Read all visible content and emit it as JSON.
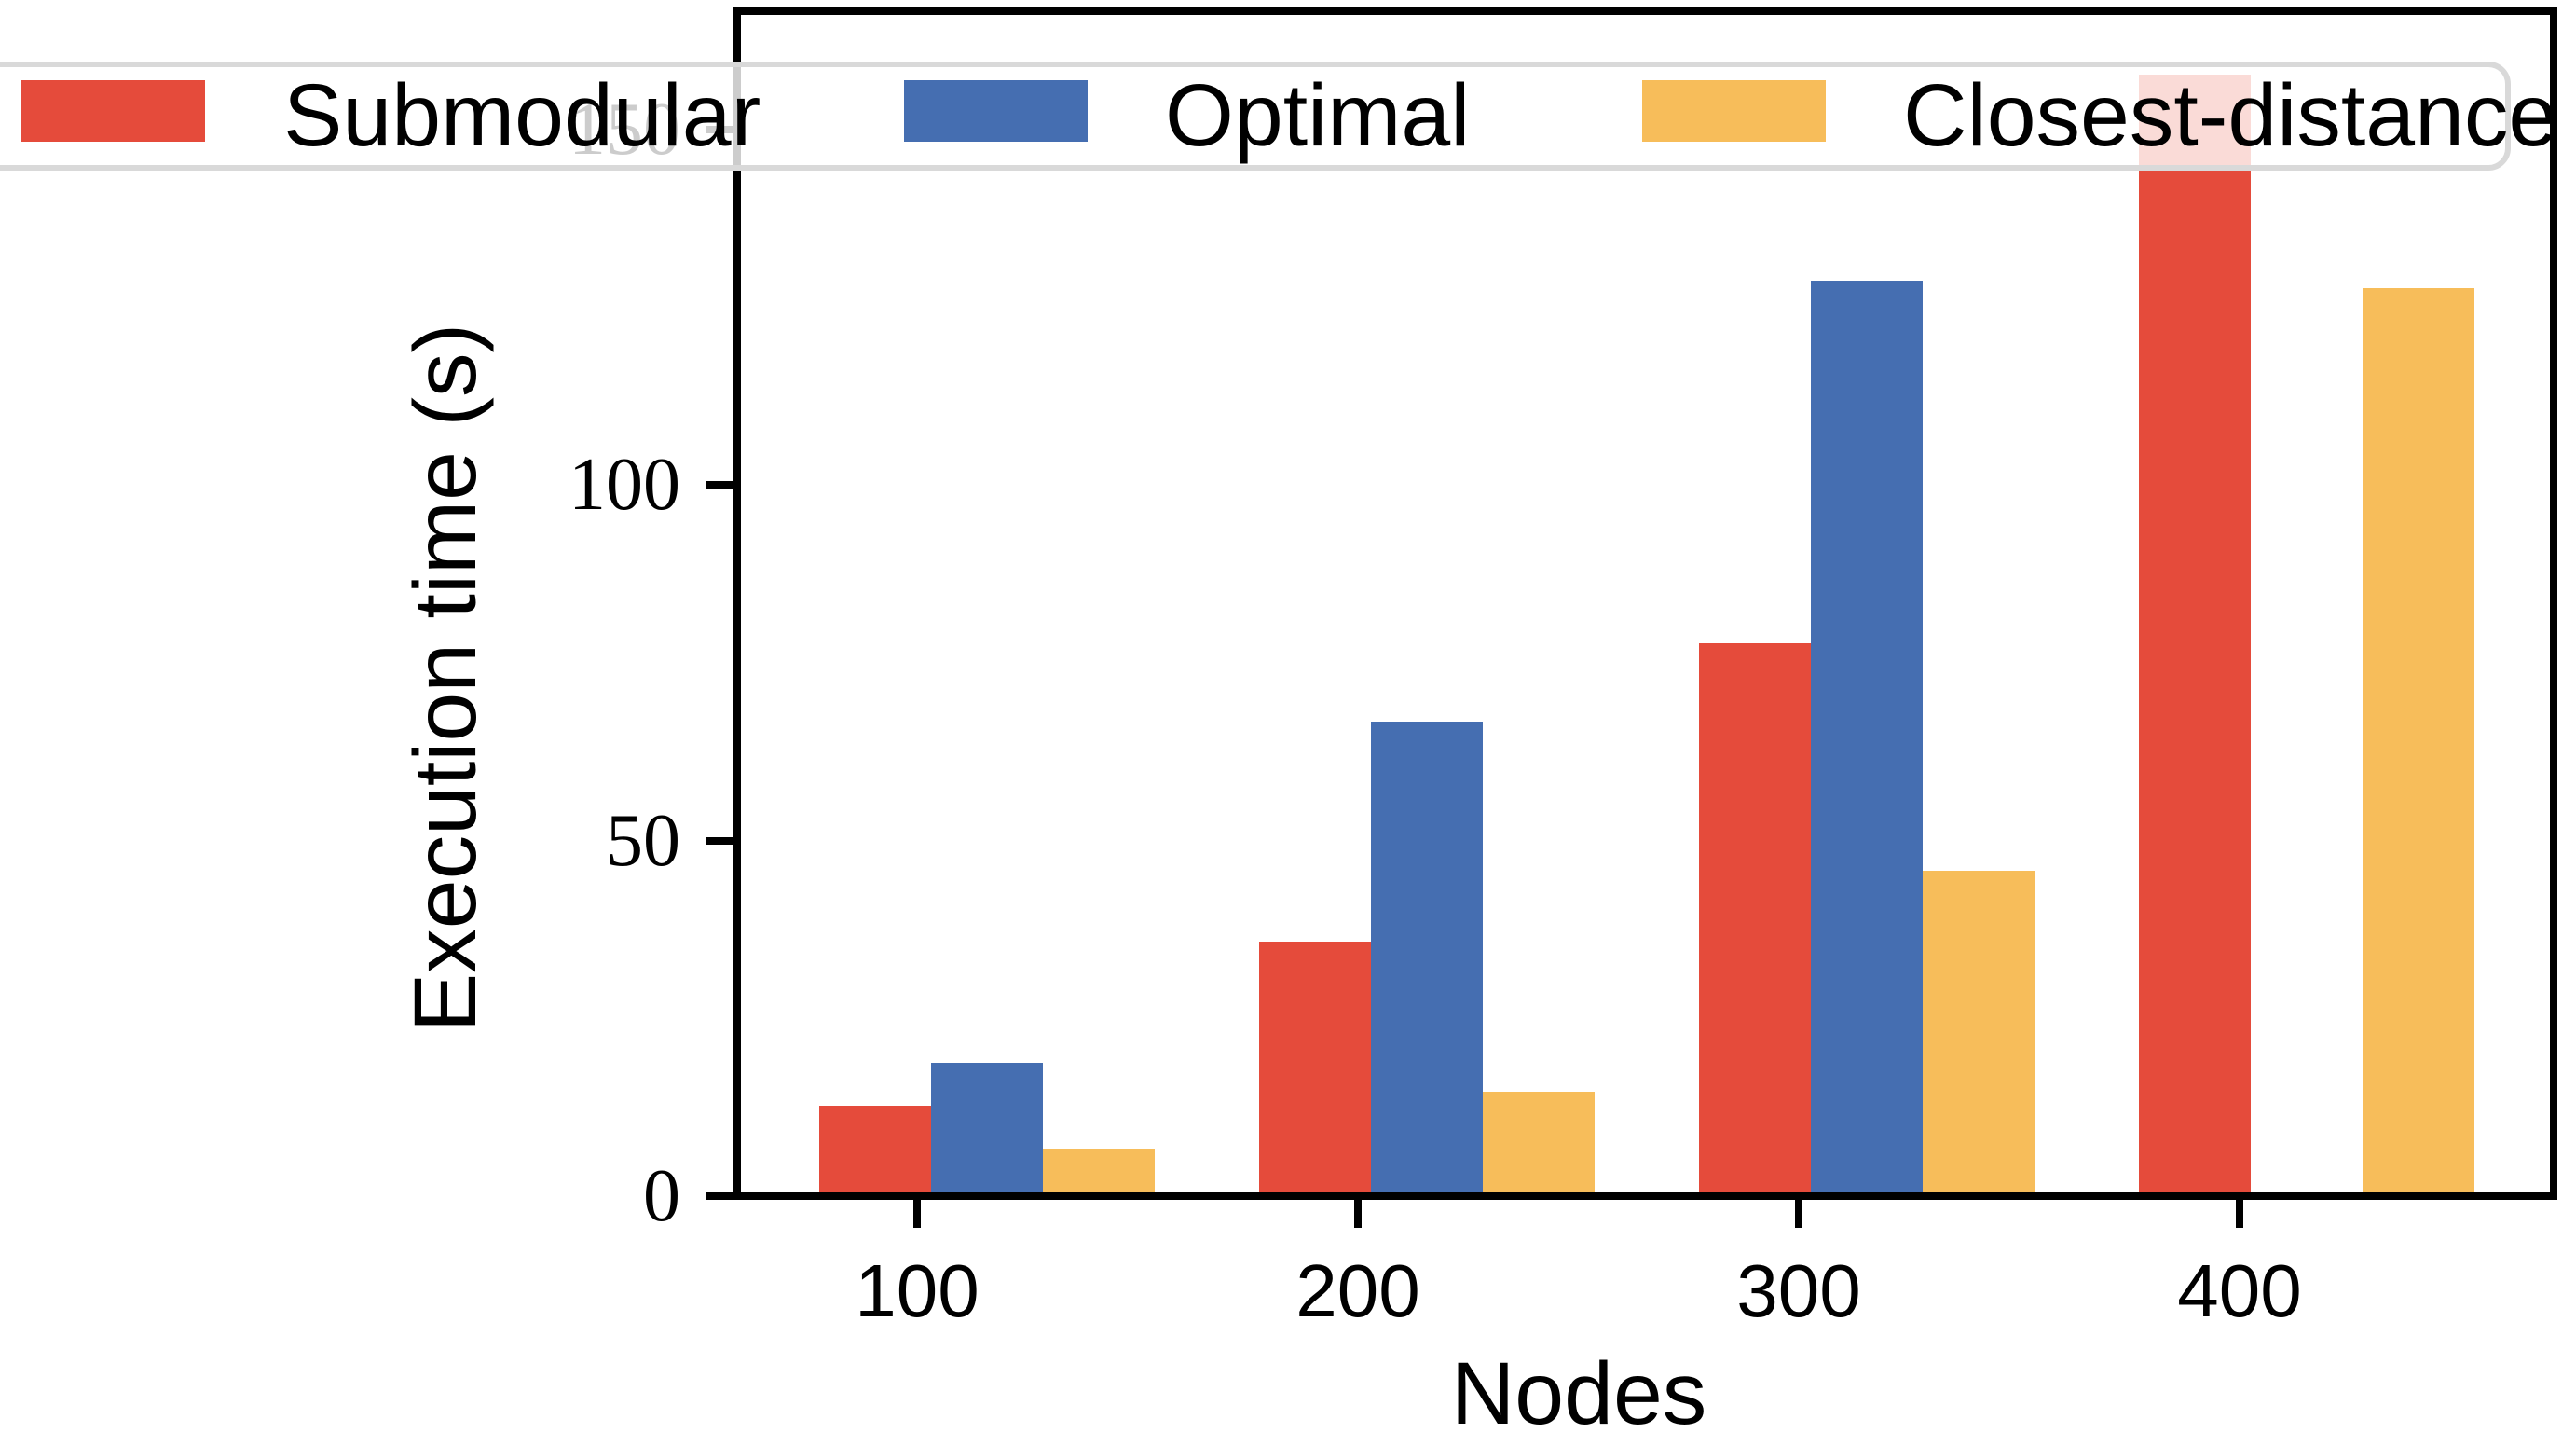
{
  "chart_data": {
    "type": "bar",
    "title": "",
    "xlabel": "Nodes",
    "ylabel": "Execution time (s)",
    "categories": [
      "100",
      "200",
      "300",
      "400"
    ],
    "series": [
      {
        "name": "Submodular",
        "color": "#E54B3B",
        "values": [
          13,
          36,
          78,
          158
        ]
      },
      {
        "name": "Optimal",
        "color": "#456EB1",
        "values": [
          19,
          67,
          129,
          null
        ]
      },
      {
        "name": "Closest-distance",
        "color": "#F7BD5A",
        "values": [
          7,
          15,
          46,
          128
        ]
      }
    ],
    "yticks": [
      "0",
      "50",
      "100",
      "150"
    ],
    "ytick_values": [
      0,
      50,
      100,
      150
    ],
    "ylim": [
      0,
      167
    ],
    "grid": false,
    "legend_position": "top",
    "legend_frame_alpha": 0.8,
    "axis_color": "#000000",
    "legend_border_color": "#d9d9d9"
  }
}
